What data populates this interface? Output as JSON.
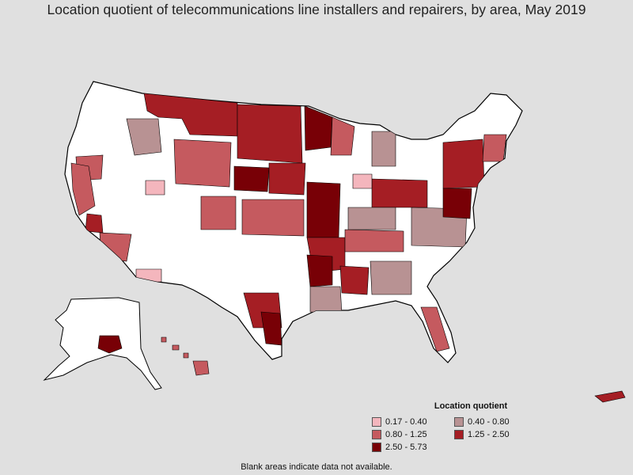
{
  "title": "Location quotient of telecommunications line installers and repairers, by area, May 2019",
  "legend": {
    "title": "Location quotient",
    "items": [
      {
        "label": "0.17 - 0.40",
        "color": "#f4b6bd"
      },
      {
        "label": "0.40 - 0.80",
        "color": "#b89293"
      },
      {
        "label": "0.80 - 1.25",
        "color": "#c55a5f"
      },
      {
        "label": "1.25 - 2.50",
        "color": "#a51e24"
      },
      {
        "label": "2.50 - 5.73",
        "color": "#780006"
      }
    ]
  },
  "colors": {
    "background": "#e0e0e0",
    "no_data": "#ffffff",
    "border": "#000000"
  },
  "footnote": "Blank areas indicate data not available."
}
